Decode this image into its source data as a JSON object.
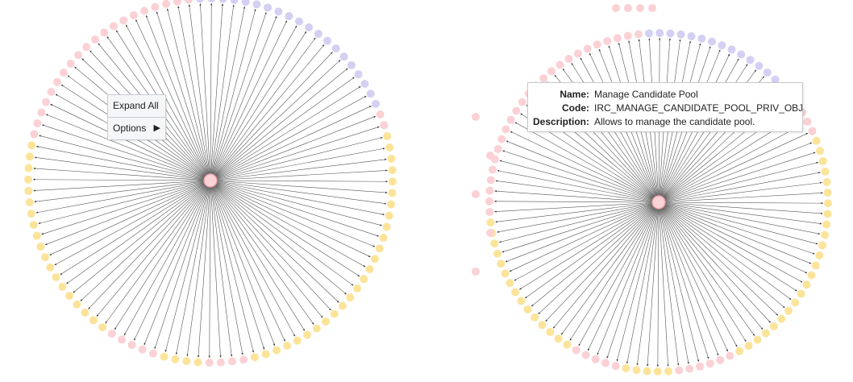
{
  "context_menu": {
    "expand_all_label": "Expand All",
    "options_label": "Options",
    "options_arrow": "▶"
  },
  "tooltip": {
    "name_key": "Name:",
    "name_value": "Manage Candidate Pool",
    "code_key": "Code:",
    "code_value": "IRC_MANAGE_CANDIDATE_POOL_PRIV_OBJ",
    "description_key": "Description:",
    "description_value": "Allows to manage the candidate pool."
  },
  "colors": {
    "center_node": "#fbd3d6",
    "center_stroke": "#e8a1a8",
    "pink_node": "#fbd1d5",
    "yellow_node": "#fbe49a",
    "purple_node": "#d4d0f3",
    "edge": "#555555"
  },
  "graphs": [
    {
      "id": "left",
      "child_node_count": 100,
      "pink_ranges": [
        [
          0,
          19
        ],
        [
          39,
          43
        ],
        [
          48,
          51
        ],
        [
          78,
          79
        ]
      ],
      "yellow_ranges": [
        [
          20,
          38
        ],
        [
          44,
          47
        ],
        [
          52,
          77
        ]
      ],
      "purple_ranges": [
        [
          80,
          99
        ]
      ],
      "extra_nodes": []
    },
    {
      "id": "right",
      "child_node_count": 100,
      "pink_ranges": [
        [
          0,
          24
        ],
        [
          40,
          44
        ],
        [
          50,
          55
        ],
        [
          80,
          82
        ]
      ],
      "yellow_ranges": [
        [
          25,
          39
        ],
        [
          45,
          49
        ],
        [
          56,
          79
        ]
      ],
      "purple_ranges": [
        [
          83,
          99
        ]
      ],
      "extra_nodes": [
        {
          "color": "pink",
          "count": 4,
          "place": "top"
        },
        {
          "color": "pink",
          "count": 5,
          "place": "left"
        }
      ]
    }
  ]
}
